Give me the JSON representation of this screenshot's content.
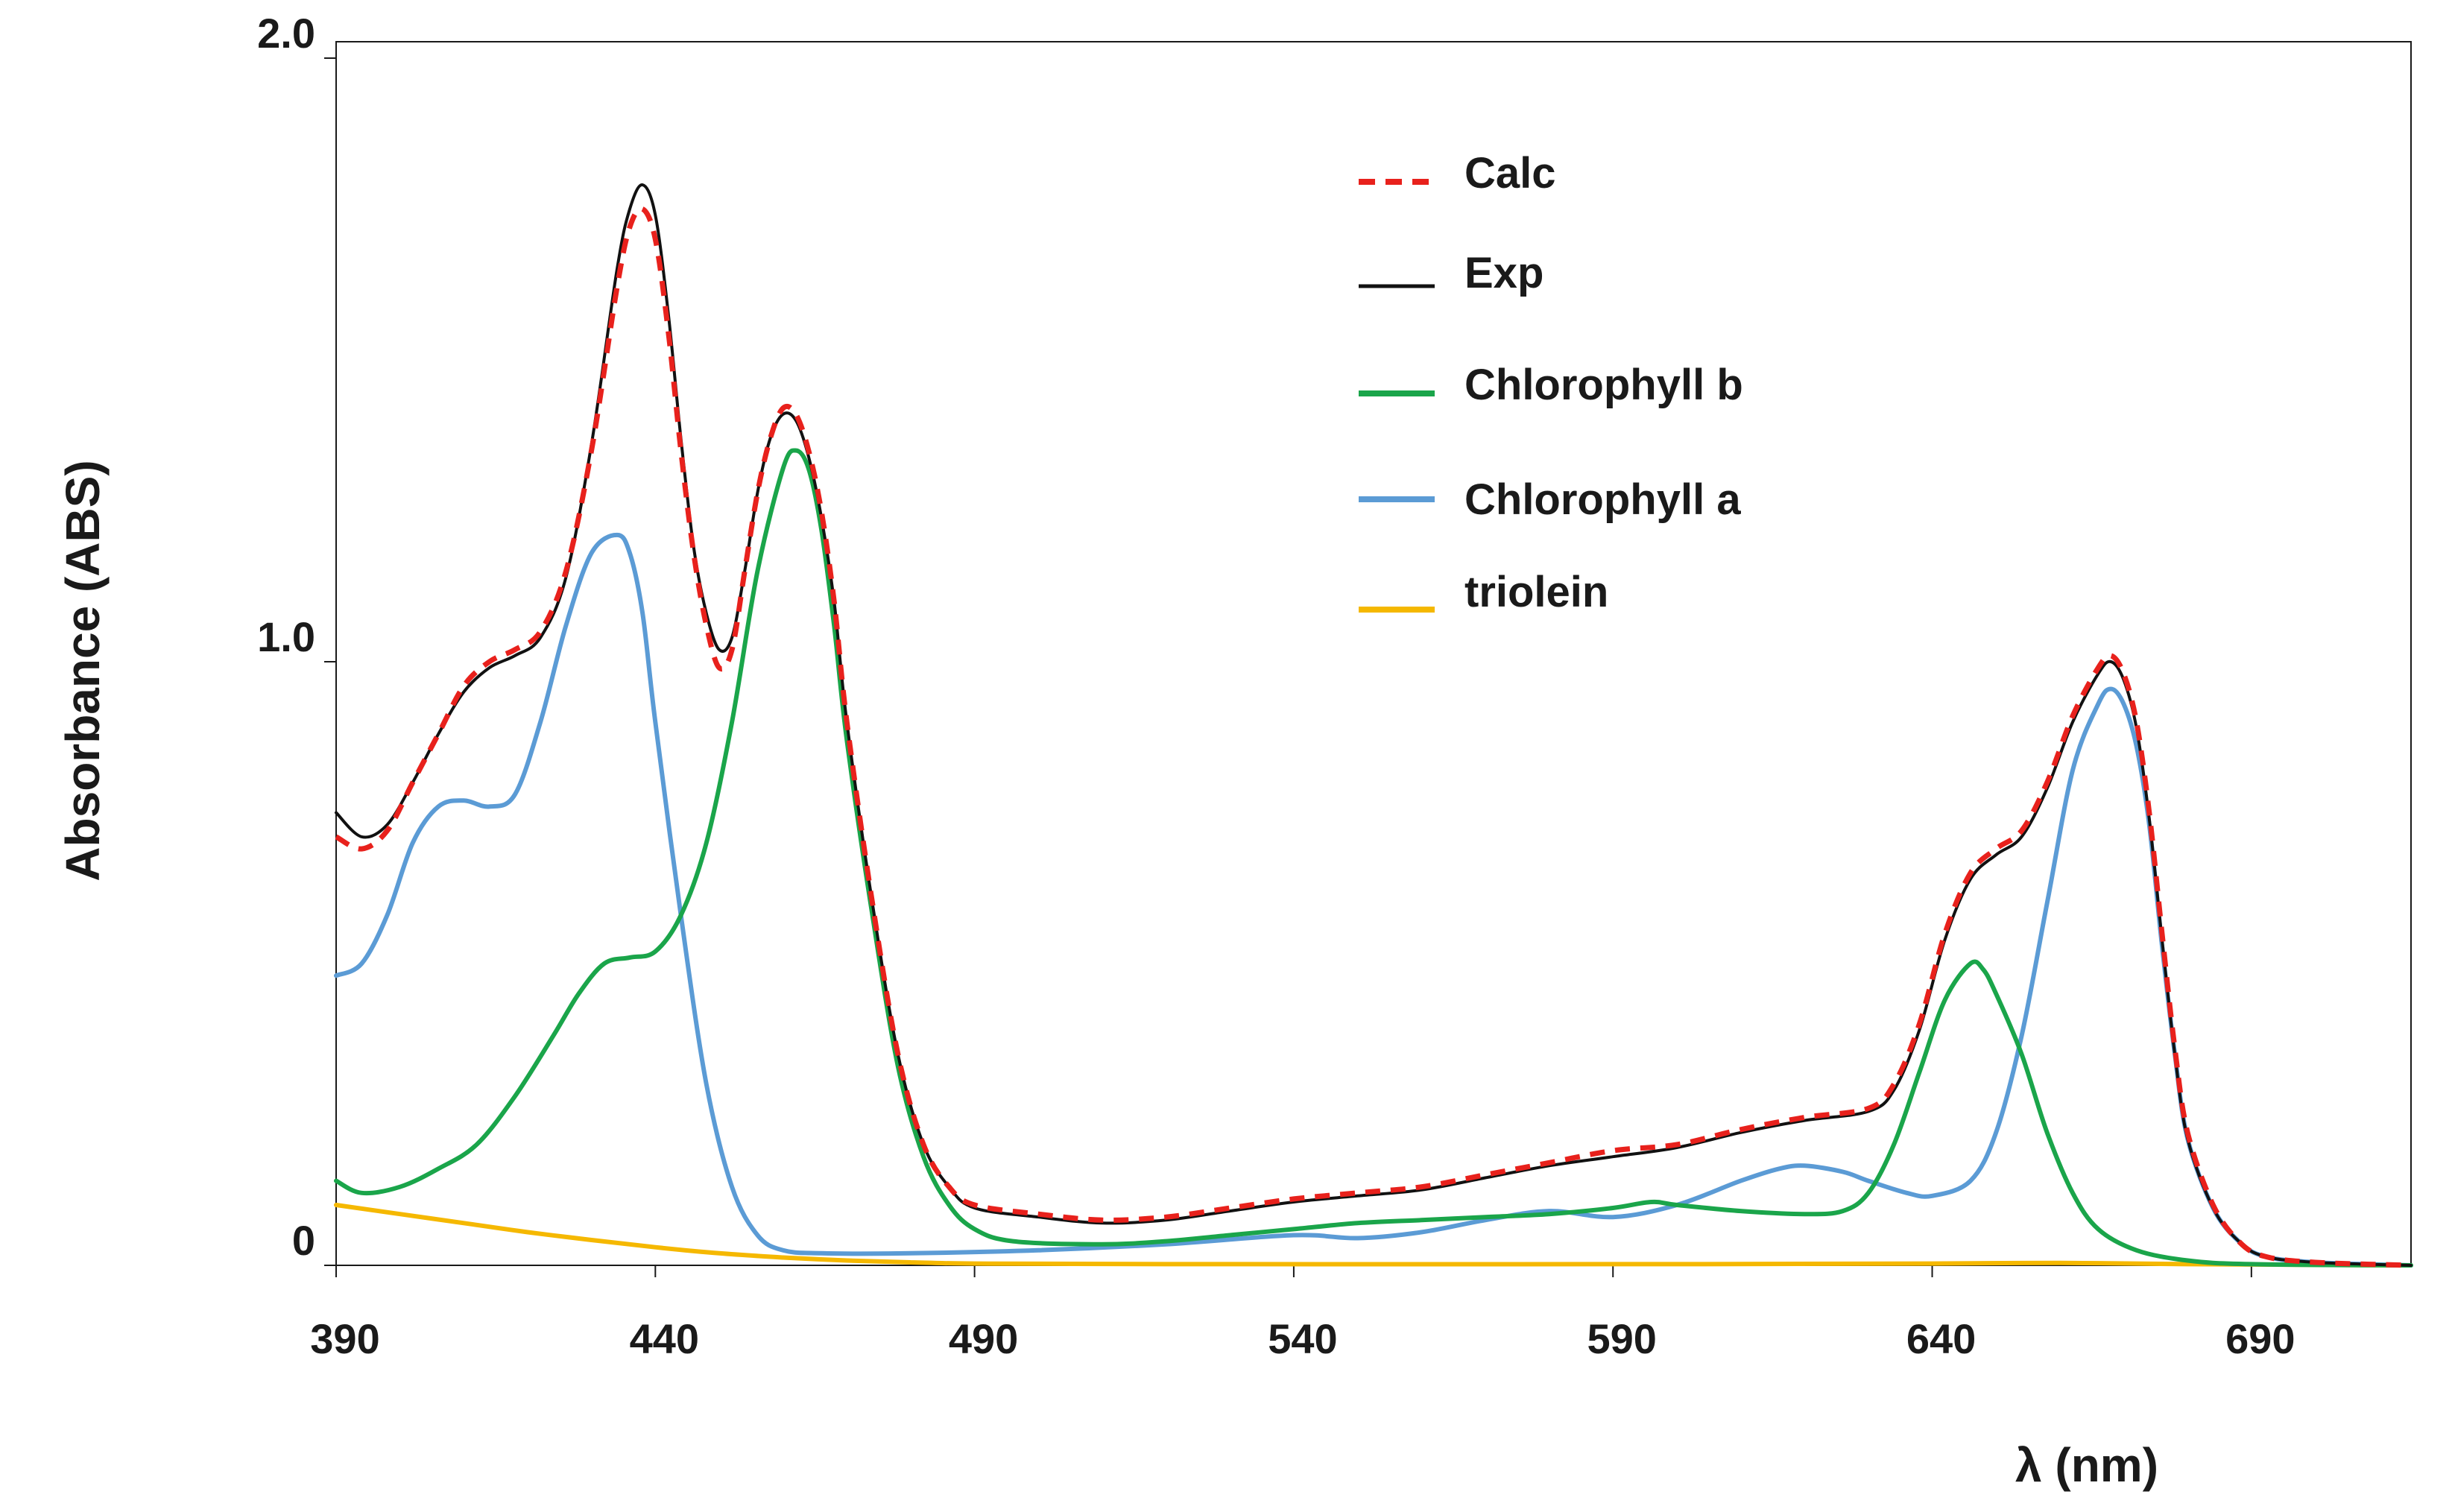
{
  "chart_data": {
    "type": "line",
    "title": "",
    "xlabel": "λ (nm)",
    "ylabel": "Absorbance (ABS)",
    "xlim": [
      390,
      715
    ],
    "ylim": [
      0,
      2.0
    ],
    "x_ticks": [
      390,
      440,
      490,
      540,
      590,
      640,
      690
    ],
    "y_ticks": [
      {
        "value": 0,
        "label": "0"
      },
      {
        "value": 1.0,
        "label": "1.0"
      },
      {
        "value": 2.0,
        "label": "2.0"
      }
    ],
    "legend_position": "top-right",
    "series": [
      {
        "name": "Calc",
        "color": "#e8211c",
        "dash": "dashed",
        "points": [
          [
            390,
            0.71
          ],
          [
            394,
            0.69
          ],
          [
            398,
            0.72
          ],
          [
            402,
            0.8
          ],
          [
            406,
            0.88
          ],
          [
            410,
            0.96
          ],
          [
            414,
            1.0
          ],
          [
            418,
            1.02
          ],
          [
            422,
            1.05
          ],
          [
            426,
            1.15
          ],
          [
            430,
            1.35
          ],
          [
            434,
            1.62
          ],
          [
            436,
            1.72
          ],
          [
            438,
            1.75
          ],
          [
            440,
            1.7
          ],
          [
            442,
            1.55
          ],
          [
            444,
            1.35
          ],
          [
            446,
            1.18
          ],
          [
            448,
            1.06
          ],
          [
            450,
            0.99
          ],
          [
            452,
            1.02
          ],
          [
            454,
            1.15
          ],
          [
            456,
            1.28
          ],
          [
            458,
            1.37
          ],
          [
            460,
            1.42
          ],
          [
            462,
            1.41
          ],
          [
            464,
            1.35
          ],
          [
            466,
            1.25
          ],
          [
            468,
            1.1
          ],
          [
            470,
            0.9
          ],
          [
            474,
            0.6
          ],
          [
            478,
            0.35
          ],
          [
            482,
            0.2
          ],
          [
            486,
            0.13
          ],
          [
            490,
            0.1
          ],
          [
            500,
            0.085
          ],
          [
            510,
            0.075
          ],
          [
            520,
            0.08
          ],
          [
            530,
            0.095
          ],
          [
            540,
            0.11
          ],
          [
            550,
            0.12
          ],
          [
            560,
            0.13
          ],
          [
            570,
            0.15
          ],
          [
            580,
            0.17
          ],
          [
            590,
            0.19
          ],
          [
            600,
            0.2
          ],
          [
            610,
            0.225
          ],
          [
            620,
            0.245
          ],
          [
            630,
            0.26
          ],
          [
            634,
            0.3
          ],
          [
            638,
            0.4
          ],
          [
            642,
            0.55
          ],
          [
            646,
            0.65
          ],
          [
            650,
            0.69
          ],
          [
            654,
            0.72
          ],
          [
            658,
            0.8
          ],
          [
            662,
            0.91
          ],
          [
            666,
            0.99
          ],
          [
            668,
            1.01
          ],
          [
            670,
            0.98
          ],
          [
            672,
            0.9
          ],
          [
            674,
            0.75
          ],
          [
            676,
            0.55
          ],
          [
            678,
            0.36
          ],
          [
            680,
            0.22
          ],
          [
            684,
            0.1
          ],
          [
            688,
            0.04
          ],
          [
            692,
            0.015
          ],
          [
            700,
            0.005
          ],
          [
            715,
            0.0
          ]
        ]
      },
      {
        "name": "Exp",
        "color": "#111111",
        "dash": "solid",
        "points": [
          [
            390,
            0.75
          ],
          [
            394,
            0.71
          ],
          [
            398,
            0.73
          ],
          [
            402,
            0.8
          ],
          [
            406,
            0.88
          ],
          [
            410,
            0.95
          ],
          [
            414,
            0.99
          ],
          [
            418,
            1.01
          ],
          [
            422,
            1.04
          ],
          [
            426,
            1.14
          ],
          [
            430,
            1.36
          ],
          [
            434,
            1.65
          ],
          [
            436,
            1.75
          ],
          [
            438,
            1.79
          ],
          [
            440,
            1.74
          ],
          [
            442,
            1.58
          ],
          [
            444,
            1.37
          ],
          [
            446,
            1.19
          ],
          [
            448,
            1.08
          ],
          [
            450,
            1.02
          ],
          [
            452,
            1.04
          ],
          [
            454,
            1.15
          ],
          [
            456,
            1.28
          ],
          [
            458,
            1.37
          ],
          [
            460,
            1.41
          ],
          [
            462,
            1.4
          ],
          [
            464,
            1.34
          ],
          [
            466,
            1.24
          ],
          [
            468,
            1.1
          ],
          [
            470,
            0.9
          ],
          [
            474,
            0.6
          ],
          [
            478,
            0.35
          ],
          [
            482,
            0.2
          ],
          [
            486,
            0.13
          ],
          [
            490,
            0.095
          ],
          [
            500,
            0.08
          ],
          [
            510,
            0.07
          ],
          [
            520,
            0.075
          ],
          [
            530,
            0.09
          ],
          [
            540,
            0.105
          ],
          [
            550,
            0.115
          ],
          [
            560,
            0.125
          ],
          [
            570,
            0.145
          ],
          [
            580,
            0.165
          ],
          [
            590,
            0.18
          ],
          [
            600,
            0.195
          ],
          [
            610,
            0.22
          ],
          [
            620,
            0.24
          ],
          [
            630,
            0.255
          ],
          [
            634,
            0.29
          ],
          [
            638,
            0.39
          ],
          [
            642,
            0.54
          ],
          [
            646,
            0.64
          ],
          [
            650,
            0.68
          ],
          [
            654,
            0.71
          ],
          [
            658,
            0.79
          ],
          [
            662,
            0.9
          ],
          [
            666,
            0.98
          ],
          [
            668,
            1.0
          ],
          [
            670,
            0.97
          ],
          [
            672,
            0.89
          ],
          [
            674,
            0.74
          ],
          [
            676,
            0.54
          ],
          [
            678,
            0.35
          ],
          [
            680,
            0.21
          ],
          [
            684,
            0.095
          ],
          [
            688,
            0.04
          ],
          [
            692,
            0.015
          ],
          [
            700,
            0.005
          ],
          [
            715,
            0.0
          ]
        ]
      },
      {
        "name": "Chlorophyll b",
        "color": "#1aa54a",
        "dash": "solid",
        "points": [
          [
            390,
            0.14
          ],
          [
            394,
            0.12
          ],
          [
            400,
            0.13
          ],
          [
            406,
            0.16
          ],
          [
            412,
            0.2
          ],
          [
            418,
            0.28
          ],
          [
            424,
            0.38
          ],
          [
            428,
            0.45
          ],
          [
            432,
            0.5
          ],
          [
            436,
            0.51
          ],
          [
            440,
            0.52
          ],
          [
            444,
            0.58
          ],
          [
            448,
            0.7
          ],
          [
            452,
            0.9
          ],
          [
            456,
            1.15
          ],
          [
            460,
            1.32
          ],
          [
            462,
            1.35
          ],
          [
            464,
            1.32
          ],
          [
            466,
            1.22
          ],
          [
            468,
            1.06
          ],
          [
            470,
            0.87
          ],
          [
            474,
            0.58
          ],
          [
            478,
            0.33
          ],
          [
            482,
            0.18
          ],
          [
            486,
            0.1
          ],
          [
            490,
            0.06
          ],
          [
            496,
            0.04
          ],
          [
            510,
            0.035
          ],
          [
            520,
            0.04
          ],
          [
            530,
            0.05
          ],
          [
            540,
            0.06
          ],
          [
            550,
            0.07
          ],
          [
            560,
            0.075
          ],
          [
            570,
            0.08
          ],
          [
            580,
            0.085
          ],
          [
            590,
            0.095
          ],
          [
            596,
            0.105
          ],
          [
            600,
            0.1
          ],
          [
            610,
            0.09
          ],
          [
            620,
            0.085
          ],
          [
            626,
            0.09
          ],
          [
            630,
            0.12
          ],
          [
            634,
            0.2
          ],
          [
            638,
            0.32
          ],
          [
            642,
            0.44
          ],
          [
            646,
            0.5
          ],
          [
            648,
            0.49
          ],
          [
            650,
            0.45
          ],
          [
            654,
            0.35
          ],
          [
            658,
            0.22
          ],
          [
            662,
            0.12
          ],
          [
            666,
            0.06
          ],
          [
            672,
            0.025
          ],
          [
            680,
            0.008
          ],
          [
            690,
            0.002
          ],
          [
            715,
            0.0
          ]
        ]
      },
      {
        "name": "Chlorophyll a",
        "color": "#5b9bd5",
        "dash": "solid",
        "points": [
          [
            390,
            0.48
          ],
          [
            394,
            0.5
          ],
          [
            398,
            0.58
          ],
          [
            402,
            0.7
          ],
          [
            406,
            0.76
          ],
          [
            410,
            0.77
          ],
          [
            414,
            0.76
          ],
          [
            418,
            0.78
          ],
          [
            422,
            0.9
          ],
          [
            426,
            1.06
          ],
          [
            430,
            1.18
          ],
          [
            434,
            1.21
          ],
          [
            436,
            1.18
          ],
          [
            438,
            1.08
          ],
          [
            440,
            0.9
          ],
          [
            444,
            0.58
          ],
          [
            448,
            0.3
          ],
          [
            452,
            0.13
          ],
          [
            456,
            0.05
          ],
          [
            460,
            0.025
          ],
          [
            466,
            0.02
          ],
          [
            480,
            0.02
          ],
          [
            500,
            0.025
          ],
          [
            520,
            0.035
          ],
          [
            540,
            0.05
          ],
          [
            550,
            0.045
          ],
          [
            560,
            0.055
          ],
          [
            570,
            0.075
          ],
          [
            580,
            0.09
          ],
          [
            590,
            0.08
          ],
          [
            600,
            0.1
          ],
          [
            610,
            0.14
          ],
          [
            616,
            0.16
          ],
          [
            620,
            0.165
          ],
          [
            626,
            0.155
          ],
          [
            630,
            0.14
          ],
          [
            636,
            0.12
          ],
          [
            640,
            0.115
          ],
          [
            646,
            0.14
          ],
          [
            650,
            0.22
          ],
          [
            654,
            0.38
          ],
          [
            658,
            0.6
          ],
          [
            662,
            0.82
          ],
          [
            666,
            0.93
          ],
          [
            668,
            0.955
          ],
          [
            670,
            0.93
          ],
          [
            672,
            0.86
          ],
          [
            674,
            0.73
          ],
          [
            676,
            0.53
          ],
          [
            678,
            0.35
          ],
          [
            680,
            0.21
          ],
          [
            684,
            0.095
          ],
          [
            688,
            0.04
          ],
          [
            692,
            0.015
          ],
          [
            700,
            0.005
          ],
          [
            715,
            0.0
          ]
        ]
      },
      {
        "name": "triolein",
        "color": "#f5b800",
        "dash": "solid",
        "points": [
          [
            390,
            0.1
          ],
          [
            400,
            0.085
          ],
          [
            410,
            0.07
          ],
          [
            420,
            0.055
          ],
          [
            430,
            0.042
          ],
          [
            440,
            0.03
          ],
          [
            450,
            0.02
          ],
          [
            460,
            0.013
          ],
          [
            470,
            0.008
          ],
          [
            480,
            0.005
          ],
          [
            490,
            0.003
          ],
          [
            520,
            0.002
          ],
          [
            600,
            0.002
          ],
          [
            640,
            0.003
          ],
          [
            660,
            0.004
          ],
          [
            680,
            0.002
          ],
          [
            715,
            0.0
          ]
        ]
      }
    ]
  }
}
